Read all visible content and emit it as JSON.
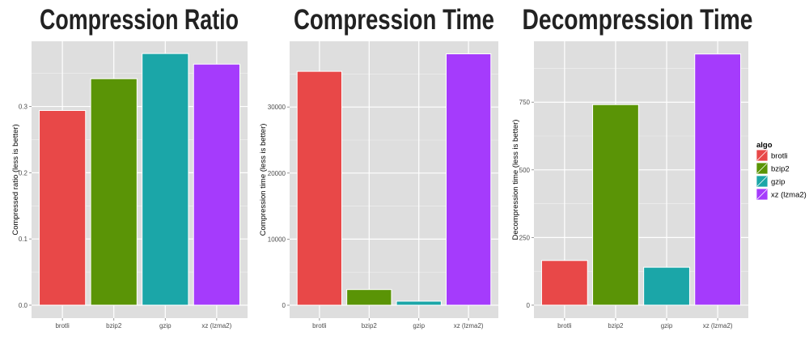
{
  "chart_data": [
    {
      "type": "bar",
      "title": "Compression Ratio",
      "xlabel": "",
      "ylabel": "Compressed ratio (less is better)",
      "categories": [
        "brotli",
        "bzip2",
        "gzip",
        "xz (lzma2)"
      ],
      "values": [
        0.294,
        0.342,
        0.38,
        0.364
      ],
      "yticks": [
        0.0,
        0.1,
        0.2,
        0.3
      ],
      "ytick_labels": [
        "0.0",
        "0.1",
        "0.2",
        "0.3"
      ],
      "ylim": [
        -0.0196,
        0.3985
      ],
      "grid": true
    },
    {
      "type": "bar",
      "title": "Compression Time",
      "xlabel": "",
      "ylabel": "Compression time (less is better)",
      "categories": [
        "brotli",
        "bzip2",
        "gzip",
        "xz (lzma2)"
      ],
      "values": [
        35400,
        2370,
        610,
        38050
      ],
      "yticks": [
        0,
        10000,
        20000,
        30000
      ],
      "ytick_labels": [
        "0",
        "10000",
        "20000",
        "30000"
      ],
      "ylim": [
        -1960,
        39950
      ],
      "grid": true
    },
    {
      "type": "bar",
      "title": "Decompression Time",
      "xlabel": "",
      "ylabel": "Decompression time (less is better)",
      "categories": [
        "brotli",
        "bzip2",
        "gzip",
        "xz (lzma2)"
      ],
      "values": [
        165,
        741,
        140,
        928
      ],
      "yticks": [
        0,
        250,
        500,
        750
      ],
      "ytick_labels": [
        "0",
        "250",
        "500",
        "750"
      ],
      "ylim": [
        -48,
        975
      ],
      "grid": true
    }
  ],
  "legend": {
    "title": "algo",
    "placement": "right",
    "items": [
      "brotli",
      "bzip2",
      "gzip",
      "xz (lzma2)"
    ]
  },
  "colors": {
    "brotli": "#e84848",
    "bzip2": "#5a9406",
    "gzip": "#1ba6a8",
    "xz (lzma2)": "#a53bfc",
    "panel": "#dedede",
    "grid": "#ffffff"
  }
}
